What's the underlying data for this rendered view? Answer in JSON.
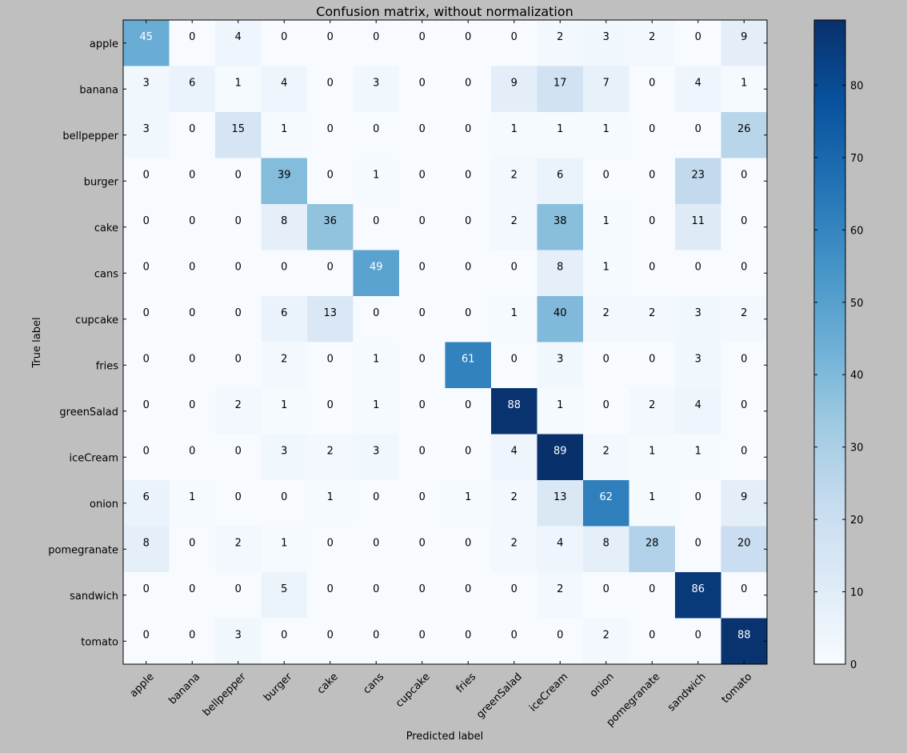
{
  "chart_data": {
    "type": "heatmap",
    "title": "Confusion matrix, without normalization",
    "xlabel": "Predicted label",
    "ylabel": "True label",
    "categories": [
      "apple",
      "banana",
      "bellpepper",
      "burger",
      "cake",
      "cans",
      "cupcake",
      "fries",
      "greenSalad",
      "iceCream",
      "onion",
      "pomegranate",
      "sandwich",
      "tomato"
    ],
    "matrix": [
      [
        45,
        0,
        4,
        0,
        0,
        0,
        0,
        0,
        0,
        2,
        3,
        2,
        0,
        9
      ],
      [
        3,
        6,
        1,
        4,
        0,
        3,
        0,
        0,
        9,
        17,
        7,
        0,
        4,
        1
      ],
      [
        3,
        0,
        15,
        1,
        0,
        0,
        0,
        0,
        1,
        1,
        1,
        0,
        0,
        26
      ],
      [
        0,
        0,
        0,
        39,
        0,
        1,
        0,
        0,
        2,
        6,
        0,
        0,
        23,
        0
      ],
      [
        0,
        0,
        0,
        8,
        36,
        0,
        0,
        0,
        2,
        38,
        1,
        0,
        11,
        0
      ],
      [
        0,
        0,
        0,
        0,
        0,
        49,
        0,
        0,
        0,
        8,
        1,
        0,
        0,
        0
      ],
      [
        0,
        0,
        0,
        6,
        13,
        0,
        0,
        0,
        1,
        40,
        2,
        2,
        3,
        2
      ],
      [
        0,
        0,
        0,
        2,
        0,
        1,
        0,
        61,
        0,
        3,
        0,
        0,
        3,
        0
      ],
      [
        0,
        0,
        2,
        1,
        0,
        1,
        0,
        0,
        88,
        1,
        0,
        2,
        4,
        0
      ],
      [
        0,
        0,
        0,
        3,
        2,
        3,
        0,
        0,
        4,
        89,
        2,
        1,
        1,
        0
      ],
      [
        6,
        1,
        0,
        0,
        1,
        0,
        0,
        1,
        2,
        13,
        62,
        1,
        0,
        9
      ],
      [
        8,
        0,
        2,
        1,
        0,
        0,
        0,
        0,
        2,
        4,
        8,
        28,
        0,
        20
      ],
      [
        0,
        0,
        0,
        5,
        0,
        0,
        0,
        0,
        0,
        2,
        0,
        0,
        86,
        0
      ],
      [
        0,
        0,
        3,
        0,
        0,
        0,
        0,
        0,
        0,
        0,
        2,
        0,
        0,
        88
      ]
    ],
    "colormap": "Blues",
    "vmin": 0,
    "vmax": 89,
    "colorbar_ticks": [
      "0",
      "10",
      "20",
      "30",
      "40",
      "50",
      "60",
      "70",
      "80"
    ],
    "grid": false
  },
  "colors": {
    "background": "#bfbfbf",
    "text_dark": "#000000",
    "text_light": "#ffffff"
  }
}
